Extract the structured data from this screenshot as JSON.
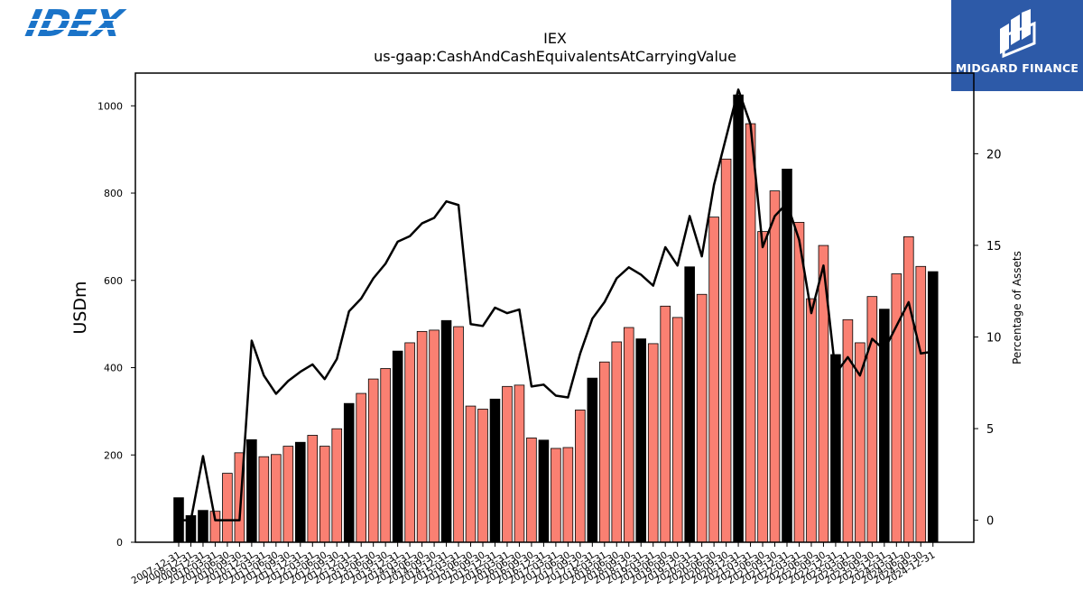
{
  "logos": {
    "left_brand": "IDEX",
    "right_brand": "MIDGARD FINANCE"
  },
  "chart_data": {
    "type": "bar",
    "title": "IEX",
    "subtitle": "us-gaap:CashAndCashEquivalentsAtCarryingValue",
    "ylabel": "USDm",
    "y2label": "Percentage of Assets",
    "ylim": [
      0,
      1075
    ],
    "y2lim": [
      -1.2,
      24.4
    ],
    "yticks": [
      0,
      200,
      400,
      600,
      800,
      1000
    ],
    "y2ticks": [
      0,
      5,
      10,
      15,
      20
    ],
    "colors": {
      "annual": "#000000",
      "quarterly": "#fa8072",
      "edge": "#000000",
      "line": "#000000"
    },
    "categories": [
      "2007-12-31",
      "2008-12-31",
      "2009-12-31",
      "2010-03-31",
      "2010-06-30",
      "2010-09-30",
      "2010-12-31",
      "2011-03-31",
      "2011-06-30",
      "2011-09-30",
      "2011-12-31",
      "2012-03-31",
      "2012-06-30",
      "2012-09-30",
      "2012-12-31",
      "2013-03-31",
      "2013-06-30",
      "2013-09-30",
      "2013-12-31",
      "2014-03-31",
      "2014-06-30",
      "2014-09-30",
      "2014-12-31",
      "2015-03-31",
      "2015-06-30",
      "2015-09-30",
      "2015-12-31",
      "2016-03-31",
      "2016-06-30",
      "2016-09-30",
      "2016-12-31",
      "2017-03-31",
      "2017-06-30",
      "2017-09-30",
      "2017-12-31",
      "2018-03-31",
      "2018-06-30",
      "2018-09-30",
      "2018-12-31",
      "2019-03-31",
      "2019-06-30",
      "2019-09-30",
      "2019-12-31",
      "2020-03-31",
      "2020-06-30",
      "2020-09-30",
      "2020-12-31",
      "2021-03-31",
      "2021-06-30",
      "2021-09-30",
      "2021-12-31",
      "2022-03-31",
      "2022-06-30",
      "2022-09-30",
      "2022-12-31",
      "2023-03-31",
      "2023-06-30",
      "2023-09-30",
      "2023-12-31",
      "2024-03-31",
      "2024-06-30",
      "2024-09-30",
      "2024-12-31"
    ],
    "values": [
      102,
      61,
      73,
      71,
      158,
      205,
      235,
      196,
      201,
      220,
      229,
      245,
      220,
      260,
      318,
      341,
      374,
      398,
      438,
      457,
      483,
      486,
      508,
      494,
      312,
      305,
      328,
      357,
      360,
      239,
      234,
      215,
      217,
      303,
      376,
      413,
      459,
      492,
      466,
      455,
      541,
      515,
      631,
      568,
      745,
      878,
      1025,
      959,
      712,
      805,
      855,
      733,
      558,
      680,
      430,
      510,
      457,
      563,
      534,
      615,
      700,
      632,
      620
    ],
    "annual": [
      true,
      true,
      true,
      false,
      false,
      false,
      true,
      false,
      false,
      false,
      true,
      false,
      false,
      false,
      true,
      false,
      false,
      false,
      true,
      false,
      false,
      false,
      true,
      false,
      false,
      false,
      true,
      false,
      false,
      false,
      true,
      false,
      false,
      false,
      true,
      false,
      false,
      false,
      true,
      false,
      false,
      false,
      true,
      false,
      false,
      false,
      true,
      false,
      false,
      false,
      true,
      false,
      false,
      false,
      true,
      false,
      false,
      false,
      true,
      false,
      false,
      false,
      true
    ],
    "pct_assets": [
      0,
      0,
      3.5,
      0,
      0,
      0,
      9.8,
      7.9,
      6.9,
      7.6,
      8.1,
      8.5,
      7.7,
      8.8,
      11.4,
      12.1,
      13.2,
      14.0,
      15.2,
      15.5,
      16.2,
      16.5,
      17.4,
      17.2,
      10.7,
      10.6,
      11.6,
      11.3,
      11.5,
      7.3,
      7.4,
      6.8,
      6.7,
      9.1,
      11.0,
      11.9,
      13.2,
      13.8,
      13.4,
      12.8,
      14.9,
      13.9,
      16.6,
      14.4,
      18.3,
      20.9,
      23.5,
      21.6,
      14.9,
      16.6,
      17.3,
      15.3,
      11.3,
      13.9,
      8.0,
      8.9,
      7.9,
      9.9,
      9.3,
      10.6,
      11.9,
      9.1,
      9.2
    ]
  }
}
